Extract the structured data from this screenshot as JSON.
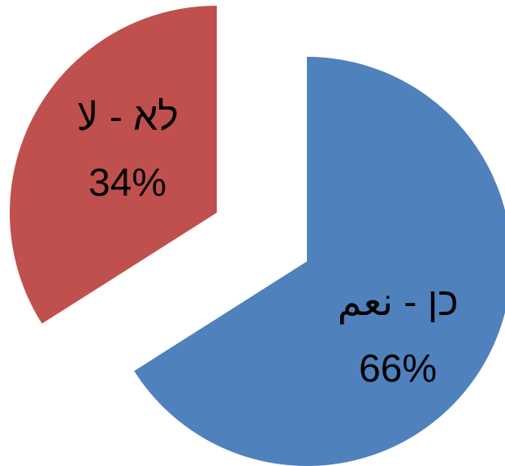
{
  "chart_data": {
    "type": "pie",
    "title": "",
    "start_angle_deg": 0,
    "direction": "clockwise",
    "slices": [
      {
        "label": "כן - نعم",
        "value": 66,
        "percent_label": "66%",
        "color": "#4F81BD",
        "exploded": true
      },
      {
        "label": "לא - لا",
        "value": 34,
        "percent_label": "34%",
        "color": "#C0504D",
        "exploded": true
      }
    ],
    "legend": "none",
    "data_labels": "inside"
  }
}
